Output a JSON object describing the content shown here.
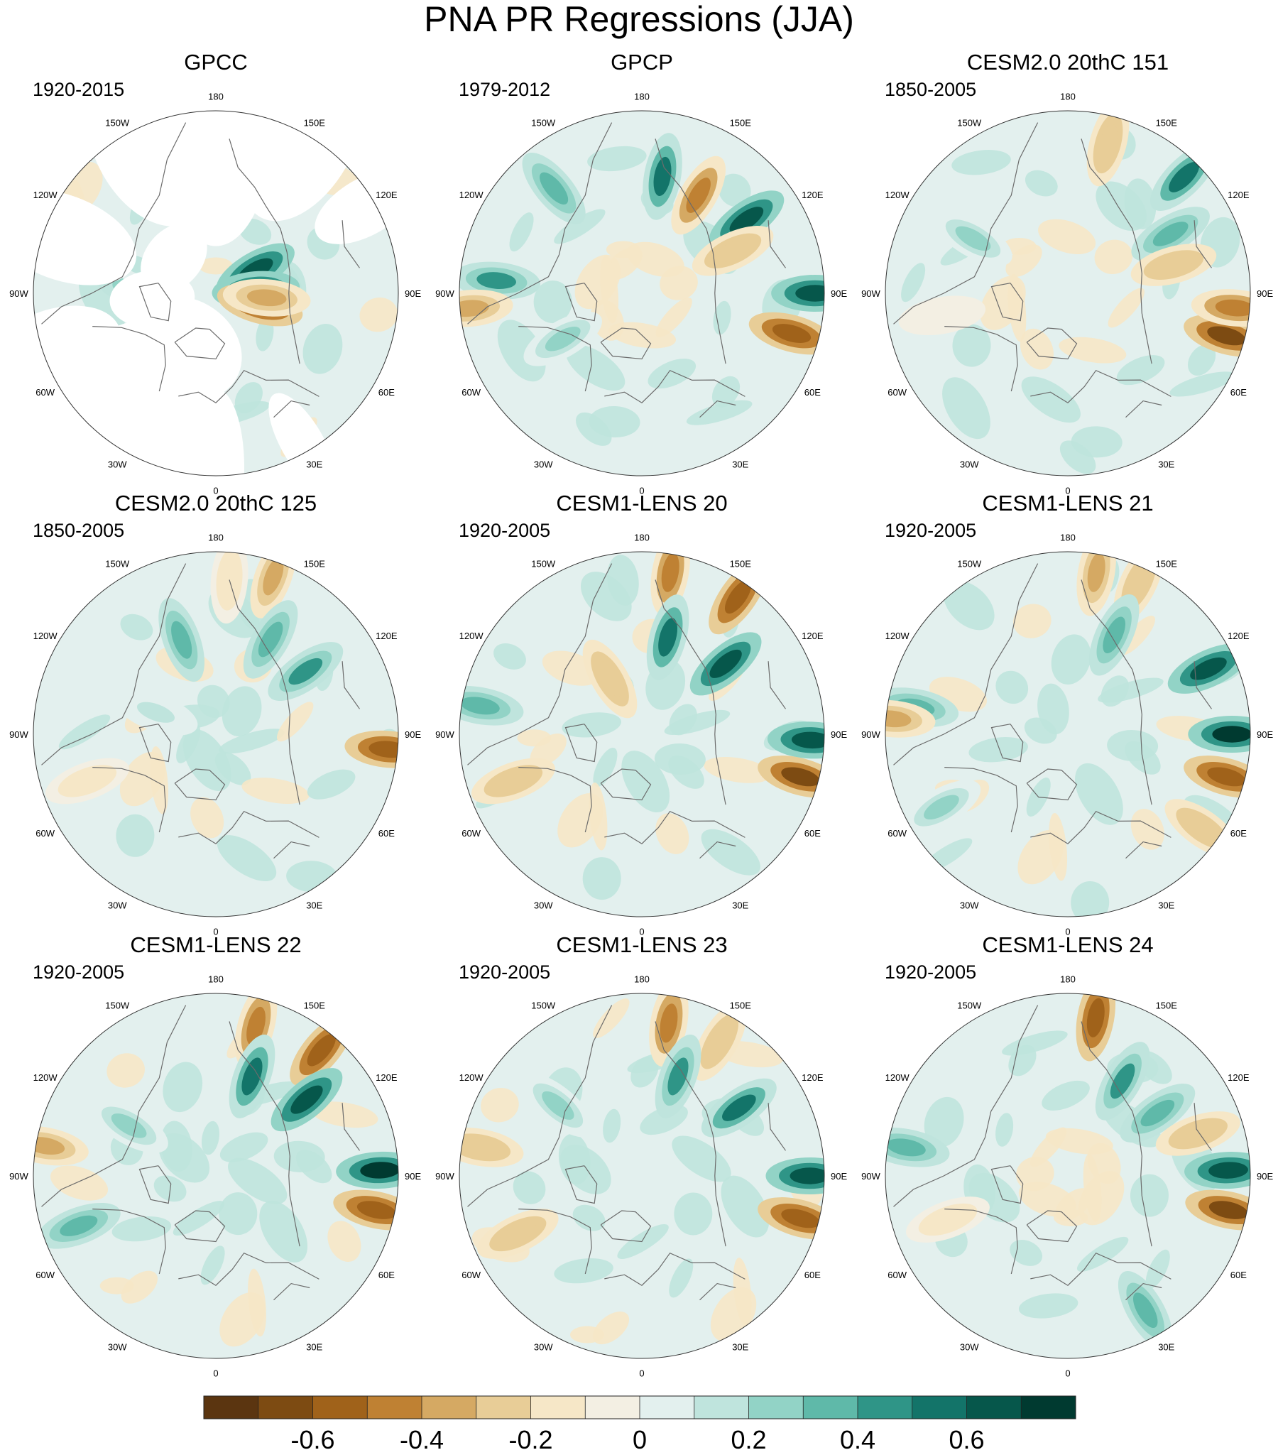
{
  "chart_data": {
    "type": "heatmap",
    "title": "PNA PR Regressions (JJA)",
    "projection": "north polar stereographic",
    "longitude_labels": [
      "180",
      "150E",
      "120E",
      "90E",
      "60E",
      "30E",
      "0",
      "30W",
      "60W",
      "90W",
      "120W",
      "150W"
    ],
    "colorbar": {
      "tick_labels": [
        "-0.6",
        "-0.4",
        "-0.2",
        "0",
        "0.2",
        "0.4",
        "0.6"
      ],
      "tick_values": [
        -0.6,
        -0.4,
        -0.2,
        0,
        0.2,
        0.4,
        0.6
      ],
      "levels": [
        -0.7,
        -0.6,
        -0.5,
        -0.4,
        -0.3,
        -0.2,
        -0.1,
        0,
        0.1,
        0.2,
        0.3,
        0.4,
        0.5,
        0.6,
        0.7
      ],
      "colors": [
        "#5b3510",
        "#7d4b12",
        "#a0621a",
        "#bf8133",
        "#d5a963",
        "#e8cd97",
        "#f6e7c7",
        "#f3efe3",
        "#e3f0ee",
        "#bfe4dd",
        "#92d3c6",
        "#5fb9a9",
        "#2f9587",
        "#137469",
        "#06574b",
        "#003a30"
      ]
    },
    "panels": [
      {
        "title": "GPCC",
        "period": "1920-2015",
        "masked": true,
        "anomalies": [
          {
            "lon": 120,
            "r": 0.25,
            "value": 0.6
          },
          {
            "lon": 95,
            "r": 0.22,
            "value": 0.6
          },
          {
            "lon": 75,
            "r": 0.25,
            "value": -0.6
          },
          {
            "lon": 85,
            "r": 0.28,
            "value": -0.4
          },
          {
            "lon": -95,
            "r": 0.4,
            "value": 0.3
          },
          {
            "lon": -110,
            "r": 0.45,
            "value": 0.1
          }
        ]
      },
      {
        "title": "GPCP",
        "period": "1979-2012",
        "anomalies": [
          {
            "lon": 170,
            "r": 0.65,
            "value": 0.5
          },
          {
            "lon": 150,
            "r": 0.62,
            "value": -0.5
          },
          {
            "lon": 125,
            "r": 0.7,
            "value": 0.6
          },
          {
            "lon": 115,
            "r": 0.55,
            "value": -0.3
          },
          {
            "lon": 90,
            "r": 0.95,
            "value": 0.6
          },
          {
            "lon": 75,
            "r": 0.85,
            "value": -0.6
          },
          {
            "lon": -95,
            "r": 0.8,
            "value": 0.4
          },
          {
            "lon": -85,
            "r": 0.95,
            "value": -0.4
          },
          {
            "lon": -140,
            "r": 0.75,
            "value": 0.3
          },
          {
            "lon": -60,
            "r": 0.5,
            "value": 0.2
          }
        ]
      },
      {
        "title": "CESM2.0 20thC 151",
        "period": "1850-2005",
        "anomalies": [
          {
            "lon": 165,
            "r": 0.85,
            "value": -0.3
          },
          {
            "lon": 135,
            "r": 0.9,
            "value": 0.5
          },
          {
            "lon": 120,
            "r": 0.65,
            "value": 0.3
          },
          {
            "lon": 105,
            "r": 0.6,
            "value": -0.3
          },
          {
            "lon": 75,
            "r": 0.9,
            "value": -0.7
          },
          {
            "lon": 85,
            "r": 0.92,
            "value": -0.5
          },
          {
            "lon": -120,
            "r": 0.6,
            "value": 0.2
          },
          {
            "lon": -80,
            "r": 0.7,
            "value": -0.1
          }
        ]
      },
      {
        "title": "CESM2.0 20thC 125",
        "period": "1850-2005",
        "anomalies": [
          {
            "lon": 160,
            "r": 0.92,
            "value": -0.4
          },
          {
            "lon": 175,
            "r": 0.85,
            "value": -0.2
          },
          {
            "lon": 150,
            "r": 0.6,
            "value": 0.3
          },
          {
            "lon": 125,
            "r": 0.6,
            "value": 0.4
          },
          {
            "lon": 85,
            "r": 0.95,
            "value": -0.6
          },
          {
            "lon": -160,
            "r": 0.55,
            "value": 0.3
          },
          {
            "lon": -70,
            "r": 0.75,
            "value": -0.2
          },
          {
            "lon": -110,
            "r": 0.35,
            "value": 0.1
          }
        ]
      },
      {
        "title": "CESM1-LENS 20",
        "period": "1920-2005",
        "anomalies": [
          {
            "lon": 170,
            "r": 0.9,
            "value": -0.5
          },
          {
            "lon": 145,
            "r": 0.92,
            "value": -0.6
          },
          {
            "lon": 165,
            "r": 0.55,
            "value": 0.5
          },
          {
            "lon": 130,
            "r": 0.6,
            "value": 0.6
          },
          {
            "lon": 88,
            "r": 0.93,
            "value": 0.6
          },
          {
            "lon": 75,
            "r": 0.9,
            "value": -0.7
          },
          {
            "lon": -100,
            "r": 0.9,
            "value": 0.3
          },
          {
            "lon": -70,
            "r": 0.75,
            "value": -0.3
          },
          {
            "lon": -150,
            "r": 0.35,
            "value": -0.3
          }
        ]
      },
      {
        "title": "CESM1-LENS 21",
        "period": "1920-2005",
        "anomalies": [
          {
            "lon": 170,
            "r": 0.9,
            "value": -0.4
          },
          {
            "lon": 155,
            "r": 0.92,
            "value": -0.3
          },
          {
            "lon": 155,
            "r": 0.6,
            "value": 0.3
          },
          {
            "lon": 115,
            "r": 0.85,
            "value": 0.6
          },
          {
            "lon": 90,
            "r": 0.9,
            "value": 0.7
          },
          {
            "lon": 75,
            "r": 0.9,
            "value": -0.6
          },
          {
            "lon": -100,
            "r": 0.85,
            "value": 0.3
          },
          {
            "lon": -95,
            "r": 0.97,
            "value": -0.4
          },
          {
            "lon": -60,
            "r": 0.8,
            "value": 0.2
          },
          {
            "lon": 55,
            "r": 0.9,
            "value": -0.3
          }
        ]
      },
      {
        "title": "CESM1-LENS 22",
        "period": "1920-2005",
        "anomalies": [
          {
            "lon": 165,
            "r": 0.85,
            "value": -0.5
          },
          {
            "lon": 140,
            "r": 0.9,
            "value": -0.6
          },
          {
            "lon": 160,
            "r": 0.58,
            "value": 0.5
          },
          {
            "lon": 130,
            "r": 0.65,
            "value": 0.6
          },
          {
            "lon": 92,
            "r": 0.9,
            "value": 0.7
          },
          {
            "lon": 78,
            "r": 0.9,
            "value": -0.6
          },
          {
            "lon": -100,
            "r": 0.95,
            "value": -0.4
          },
          {
            "lon": -70,
            "r": 0.8,
            "value": 0.3
          },
          {
            "lon": -120,
            "r": 0.55,
            "value": 0.2
          }
        ]
      },
      {
        "title": "CESM1-LENS 23",
        "period": "1920-2005",
        "anomalies": [
          {
            "lon": 170,
            "r": 0.85,
            "value": -0.5
          },
          {
            "lon": 150,
            "r": 0.85,
            "value": -0.3
          },
          {
            "lon": 160,
            "r": 0.58,
            "value": 0.4
          },
          {
            "lon": 125,
            "r": 0.65,
            "value": 0.5
          },
          {
            "lon": 90,
            "r": 0.92,
            "value": 0.6
          },
          {
            "lon": 75,
            "r": 0.9,
            "value": -0.6
          },
          {
            "lon": -100,
            "r": 0.9,
            "value": -0.3
          },
          {
            "lon": -65,
            "r": 0.75,
            "value": -0.3
          },
          {
            "lon": -130,
            "r": 0.6,
            "value": 0.2
          }
        ]
      },
      {
        "title": "CESM1-LENS 24",
        "period": "1920-2005",
        "anomalies": [
          {
            "lon": 170,
            "r": 0.88,
            "value": -0.6
          },
          {
            "lon": 150,
            "r": 0.6,
            "value": 0.4
          },
          {
            "lon": 125,
            "r": 0.6,
            "value": 0.3
          },
          {
            "lon": 108,
            "r": 0.75,
            "value": -0.3
          },
          {
            "lon": 92,
            "r": 0.88,
            "value": 0.6
          },
          {
            "lon": 78,
            "r": 0.9,
            "value": -0.7
          },
          {
            "lon": -100,
            "r": 0.9,
            "value": 0.3
          },
          {
            "lon": -70,
            "r": 0.7,
            "value": -0.2
          },
          {
            "lon": 30,
            "r": 0.85,
            "value": 0.3
          }
        ]
      }
    ]
  }
}
